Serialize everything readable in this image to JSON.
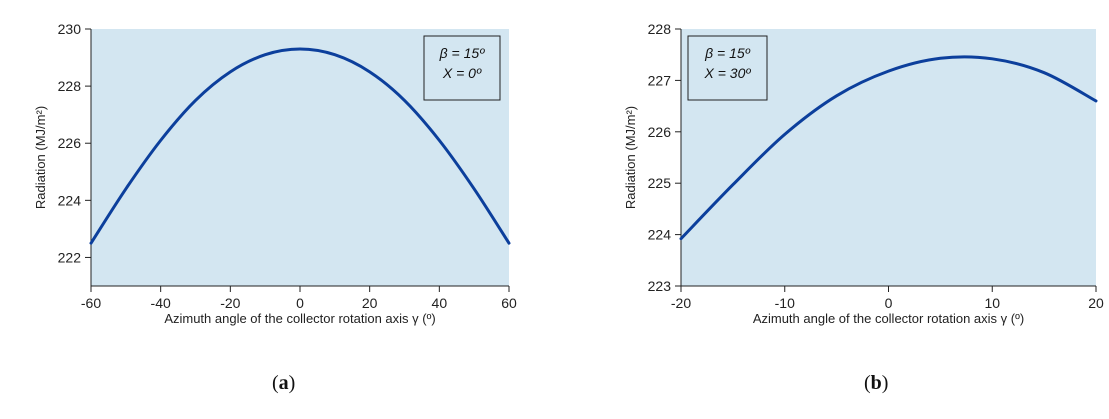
{
  "chart_data": [
    {
      "type": "line",
      "panel_label": "a",
      "caption_open": "(",
      "caption_close": ")",
      "xlabel": "Azimuth angle of the collector rotation axis γ (º)",
      "ylabel": "Radiation (MJ/m²)",
      "xlim": [
        -60,
        60
      ],
      "ylim": [
        221,
        230
      ],
      "xticks": [
        "-60",
        "-40",
        "-20",
        "0",
        "20",
        "40",
        "60"
      ],
      "yticks": [
        "222",
        "224",
        "226",
        "228",
        "230"
      ],
      "legend": [
        "β = 15º",
        "X = 0º"
      ],
      "legend_position": "top-right",
      "grid": false,
      "background": "#d3e6f1",
      "line_color": "#0c3f9c",
      "series": [
        {
          "x": [
            -60,
            -50,
            -40,
            -30,
            -20,
            -10,
            0,
            10,
            20,
            30,
            40,
            50,
            60
          ],
          "values": [
            222.5,
            224.4,
            226.1,
            227.5,
            228.5,
            229.1,
            229.3,
            229.1,
            228.5,
            227.5,
            226.1,
            224.4,
            222.5
          ]
        }
      ]
    },
    {
      "type": "line",
      "panel_label": "b",
      "caption_open": "(",
      "caption_close": ")",
      "xlabel": "Azimuth angle of the collector rotation axis γ (º)",
      "ylabel": "Radiation (MJ/m²)",
      "xlim": [
        -20,
        20
      ],
      "ylim": [
        223,
        228
      ],
      "xticks": [
        "-20",
        "-10",
        "0",
        "10",
        "20"
      ],
      "yticks": [
        "223",
        "224",
        "225",
        "226",
        "227",
        "228"
      ],
      "legend": [
        "β = 15º",
        "X = 30º"
      ],
      "legend_position": "top-left",
      "grid": false,
      "background": "#d3e6f1",
      "line_color": "#0c3f9c",
      "series": [
        {
          "x": [
            -20,
            -15,
            -10,
            -5,
            0,
            5,
            10,
            15,
            20
          ],
          "values": [
            223.92,
            224.97,
            225.95,
            226.7,
            227.18,
            227.43,
            227.42,
            227.15,
            226.6
          ]
        }
      ]
    }
  ]
}
